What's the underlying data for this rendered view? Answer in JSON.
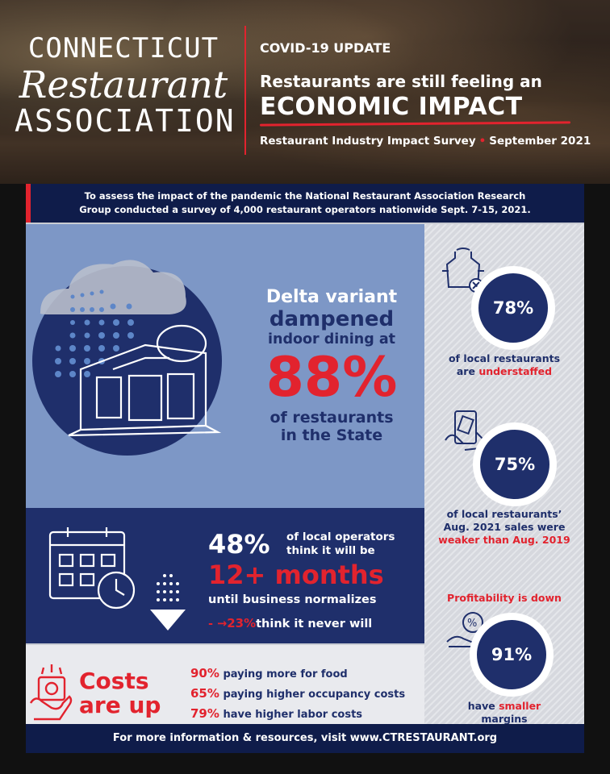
{
  "header": {
    "logo": {
      "line1": "CONNECTICUT",
      "line2": "Restaurant",
      "line3": "ASSOCIATION"
    },
    "kicker": "COVID-19 UPDATE",
    "headline_line1": "Restaurants are still feeling an",
    "headline_line2": "ECONOMIC IMPACT",
    "survey": "Restaurant Industry Impact Survey",
    "survey_date": "September 2021"
  },
  "intro": {
    "line1": "To assess the impact of the pandemic the National Restaurant Association Research",
    "line2": "Group conducted a survey of 4,000 restaurant operators nationwide Sept. 7-15, 2021."
  },
  "delta": {
    "line1": "Delta variant",
    "line2": "dampened",
    "line3": "indoor dining at",
    "value": "88%",
    "line4": "of restaurants",
    "line5": "in the State"
  },
  "stats": [
    {
      "value": "78%",
      "text_a": "of local restaurants",
      "text_b": "are ",
      "text_red": "understaffed"
    },
    {
      "value": "75%",
      "text_a": "of local restaurants’",
      "text_b": "Aug. 2021 sales were",
      "text_red": "weaker than Aug. 2019"
    },
    {
      "header_red": "Profitability is down",
      "value": "91%",
      "text_a": "have ",
      "text_red": "smaller",
      "text_b": "margins"
    }
  ],
  "months": {
    "pct": "48%",
    "sub1": "of local operators",
    "sub2": "think it will be",
    "duration": "12+ months",
    "until": "until business normalizes",
    "never_pct": "23%",
    "never_text": "think it never will"
  },
  "costs": {
    "title1": "Costs",
    "title2": "are up",
    "rows": [
      {
        "pct": "90%",
        "text": "paying more for food"
      },
      {
        "pct": "65%",
        "text": "paying higher occupancy costs"
      },
      {
        "pct": "79%",
        "text": "have higher labor costs"
      }
    ]
  },
  "footer": "For more information & resources, visit www.CTRESTAURANT.org",
  "colors": {
    "navy": "#1f2f6b",
    "dark_navy": "#0f1c4a",
    "red": "#e2232e",
    "light_blue": "#7d97c6"
  }
}
